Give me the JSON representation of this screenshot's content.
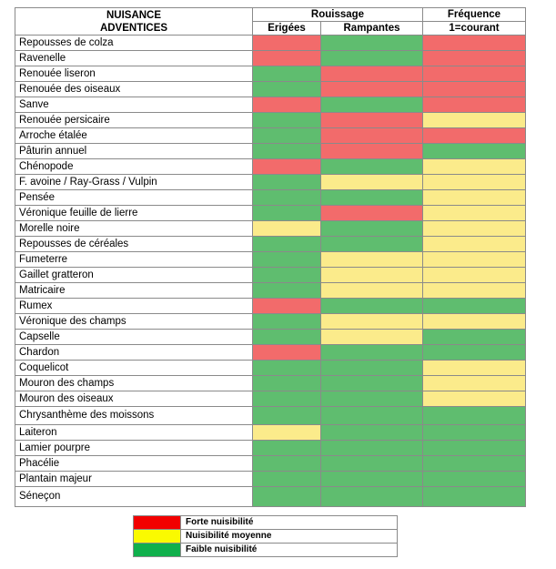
{
  "header": {
    "nuisance_line1": "NUISANCE",
    "nuisance_line2": "ADVENTICES",
    "rouissage": "Rouissage",
    "frequence": "Fréquence",
    "erigees": "Erigées",
    "rampantes": "Rampantes",
    "courant": "1=courant"
  },
  "rows": [
    {
      "name": "Repousses de colza",
      "erigees": "red",
      "rampantes": "green",
      "frequence": "red"
    },
    {
      "name": "Ravenelle",
      "erigees": "red",
      "rampantes": "green",
      "frequence": "red"
    },
    {
      "name": "Renouée liseron",
      "erigees": "green",
      "rampantes": "red",
      "frequence": "red"
    },
    {
      "name": "Renouée des oiseaux",
      "erigees": "green",
      "rampantes": "red",
      "frequence": "red"
    },
    {
      "name": "Sanve",
      "erigees": "red",
      "rampantes": "green",
      "frequence": "red"
    },
    {
      "name": "Renouée persicaire",
      "erigees": "green",
      "rampantes": "red",
      "frequence": "yellow"
    },
    {
      "name": "Arroche étalée",
      "erigees": "green",
      "rampantes": "red",
      "frequence": "red"
    },
    {
      "name": "Pâturin annuel",
      "erigees": "green",
      "rampantes": "red",
      "frequence": "green"
    },
    {
      "name": "Chénopode",
      "erigees": "red",
      "rampantes": "green",
      "frequence": "yellow"
    },
    {
      "name": "F. avoine / Ray-Grass / Vulpin",
      "erigees": "green",
      "rampantes": "yellow",
      "frequence": "yellow"
    },
    {
      "name": "Pensée",
      "erigees": "green",
      "rampantes": "green",
      "frequence": "yellow"
    },
    {
      "name": "Véronique feuille de lierre",
      "erigees": "green",
      "rampantes": "red",
      "frequence": "yellow"
    },
    {
      "name": "Morelle noire",
      "erigees": "yellow",
      "rampantes": "green",
      "frequence": "yellow"
    },
    {
      "name": "Repousses de céréales",
      "erigees": "green",
      "rampantes": "green",
      "frequence": "yellow"
    },
    {
      "name": "Fumeterre",
      "erigees": "green",
      "rampantes": "yellow",
      "frequence": "yellow"
    },
    {
      "name": "Gaillet gratteron",
      "erigees": "green",
      "rampantes": "yellow",
      "frequence": "yellow"
    },
    {
      "name": "Matricaire",
      "erigees": "green",
      "rampantes": "yellow",
      "frequence": "yellow"
    },
    {
      "name": "Rumex",
      "erigees": "red",
      "rampantes": "green",
      "frequence": "green"
    },
    {
      "name": "Véronique des champs",
      "erigees": "green",
      "rampantes": "yellow",
      "frequence": "yellow"
    },
    {
      "name": "Capselle",
      "erigees": "green",
      "rampantes": "yellow",
      "frequence": "green"
    },
    {
      "name": "Chardon",
      "erigees": "red",
      "rampantes": "green",
      "frequence": "green"
    },
    {
      "name": "Coquelicot",
      "erigees": "green",
      "rampantes": "green",
      "frequence": "yellow"
    },
    {
      "name": "Mouron des champs",
      "erigees": "green",
      "rampantes": "green",
      "frequence": "yellow"
    },
    {
      "name": "Mouron des oiseaux",
      "erigees": "green",
      "rampantes": "green",
      "frequence": "yellow"
    },
    {
      "name": "Chrysanthème des moissons",
      "erigees": "green",
      "rampantes": "green",
      "frequence": "green"
    },
    {
      "name": "Laiteron",
      "erigees": "yellow",
      "rampantes": "green",
      "frequence": "green"
    },
    {
      "name": "Lamier pourpre",
      "erigees": "green",
      "rampantes": "green",
      "frequence": "green"
    },
    {
      "name": "Phacélie",
      "erigees": "green",
      "rampantes": "green",
      "frequence": "green"
    },
    {
      "name": "Plantain majeur",
      "erigees": "green",
      "rampantes": "green",
      "frequence": "green"
    },
    {
      "name": "Séneçon",
      "erigees": "green",
      "rampantes": "green",
      "frequence": "green"
    }
  ],
  "legend": [
    {
      "color": "red",
      "label": "Forte nuisibilité"
    },
    {
      "color": "yellow",
      "label": "Nuisibilité moyenne"
    },
    {
      "color": "green",
      "label": "Faible nuisibilité"
    }
  ],
  "colors": {
    "red": "#f26b6b",
    "yellow": "#fbeb8b",
    "green": "#5fbd6f",
    "legend_red": "#f20000",
    "legend_yellow": "#fafa00",
    "legend_green": "#10b04c"
  }
}
